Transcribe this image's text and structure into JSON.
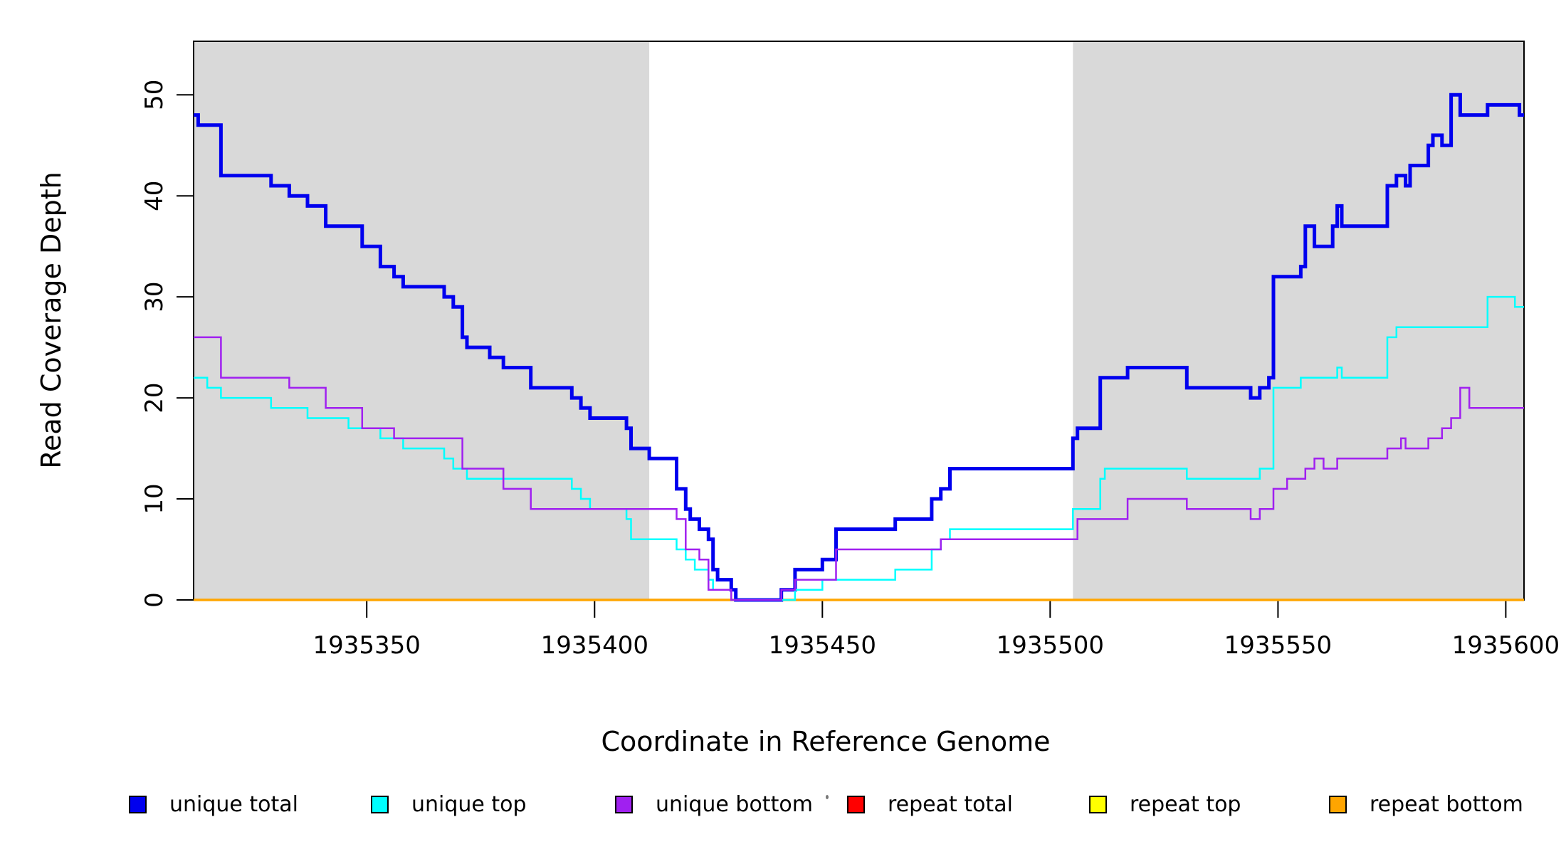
{
  "figure": {
    "background": "#FFFFFF",
    "plot_background_shaded": "#D9D9D9",
    "border_color": "#000000"
  },
  "chart_data": {
    "type": "line",
    "step": true,
    "title": "",
    "xlabel": "Coordinate in Reference Genome",
    "ylabel": "Read Coverage Depth",
    "xlim": [
      1935312,
      1935604
    ],
    "ylim": [
      0,
      55.3
    ],
    "x_ticks": [
      1935350,
      1935400,
      1935450,
      1935500,
      1935550,
      1935600
    ],
    "y_ticks": [
      0,
      10,
      20,
      30,
      40,
      50
    ],
    "grid": false,
    "legend_position": "bottom",
    "shaded_regions": [
      [
        1935312,
        1935412
      ],
      [
        1935505,
        1935604
      ]
    ],
    "series": [
      {
        "name": "repeat total",
        "color": "#FF0000",
        "width": 2.5,
        "points": [
          [
            1935312,
            0
          ]
        ]
      },
      {
        "name": "repeat top",
        "color": "#FFFF00",
        "width": 2.5,
        "points": [
          [
            1935312,
            0
          ]
        ]
      },
      {
        "name": "repeat bottom",
        "color": "#FFA500",
        "width": 3.5,
        "points": [
          [
            1935312,
            0
          ]
        ]
      },
      {
        "name": "unique total",
        "color": "#0000EE",
        "width": 5,
        "points": [
          [
            1935312,
            48
          ],
          [
            1935313,
            47
          ],
          [
            1935318,
            42
          ],
          [
            1935329,
            41
          ],
          [
            1935333,
            40
          ],
          [
            1935337,
            39
          ],
          [
            1935341,
            37
          ],
          [
            1935349,
            35
          ],
          [
            1935353,
            33
          ],
          [
            1935356,
            32
          ],
          [
            1935358,
            31
          ],
          [
            1935367,
            30
          ],
          [
            1935369,
            29
          ],
          [
            1935371,
            26
          ],
          [
            1935372,
            25
          ],
          [
            1935377,
            24
          ],
          [
            1935380,
            23
          ],
          [
            1935386,
            21
          ],
          [
            1935395,
            20
          ],
          [
            1935397,
            19
          ],
          [
            1935399,
            18
          ],
          [
            1935407,
            17
          ],
          [
            1935408,
            15
          ],
          [
            1935412,
            14
          ],
          [
            1935418,
            11
          ],
          [
            1935420,
            9
          ],
          [
            1935421,
            8
          ],
          [
            1935423,
            7
          ],
          [
            1935425,
            6
          ],
          [
            1935426,
            3
          ],
          [
            1935427,
            2
          ],
          [
            1935430,
            1
          ],
          [
            1935431,
            0
          ],
          [
            1935441,
            1
          ],
          [
            1935444,
            3
          ],
          [
            1935450,
            4
          ],
          [
            1935453,
            7
          ],
          [
            1935466,
            8
          ],
          [
            1935474,
            10
          ],
          [
            1935476,
            11
          ],
          [
            1935478,
            13
          ],
          [
            1935505,
            16
          ],
          [
            1935506,
            17
          ],
          [
            1935511,
            22
          ],
          [
            1935517,
            23
          ],
          [
            1935530,
            21
          ],
          [
            1935544,
            20
          ],
          [
            1935546,
            21
          ],
          [
            1935548,
            22
          ],
          [
            1935549,
            32
          ],
          [
            1935555,
            33
          ],
          [
            1935556,
            37
          ],
          [
            1935558,
            35
          ],
          [
            1935562,
            37
          ],
          [
            1935563,
            39
          ],
          [
            1935564,
            37
          ],
          [
            1935574,
            41
          ],
          [
            1935576,
            42
          ],
          [
            1935578,
            41
          ],
          [
            1935579,
            43
          ],
          [
            1935583,
            45
          ],
          [
            1935584,
            46
          ],
          [
            1935586,
            45
          ],
          [
            1935588,
            50
          ],
          [
            1935590,
            48
          ],
          [
            1935596,
            49
          ],
          [
            1935603,
            48
          ]
        ]
      },
      {
        "name": "unique top",
        "color": "#00FFFF",
        "width": 2.5,
        "points": [
          [
            1935312,
            22
          ],
          [
            1935315,
            21
          ],
          [
            1935318,
            20
          ],
          [
            1935329,
            19
          ],
          [
            1935337,
            18
          ],
          [
            1935346,
            17
          ],
          [
            1935353,
            16
          ],
          [
            1935358,
            15
          ],
          [
            1935367,
            14
          ],
          [
            1935369,
            13
          ],
          [
            1935372,
            12
          ],
          [
            1935395,
            11
          ],
          [
            1935397,
            10
          ],
          [
            1935399,
            9
          ],
          [
            1935407,
            8
          ],
          [
            1935408,
            6
          ],
          [
            1935418,
            5
          ],
          [
            1935420,
            4
          ],
          [
            1935422,
            3
          ],
          [
            1935425,
            2
          ],
          [
            1935426,
            1
          ],
          [
            1935430,
            0
          ],
          [
            1935444,
            1
          ],
          [
            1935450,
            2
          ],
          [
            1935466,
            3
          ],
          [
            1935474,
            5
          ],
          [
            1935476,
            6
          ],
          [
            1935478,
            7
          ],
          [
            1935505,
            9
          ],
          [
            1935511,
            12
          ],
          [
            1935512,
            13
          ],
          [
            1935530,
            12
          ],
          [
            1935546,
            13
          ],
          [
            1935549,
            21
          ],
          [
            1935555,
            22
          ],
          [
            1935563,
            23
          ],
          [
            1935564,
            22
          ],
          [
            1935574,
            26
          ],
          [
            1935576,
            27
          ],
          [
            1935596,
            30
          ],
          [
            1935602,
            29
          ]
        ]
      },
      {
        "name": "unique bottom",
        "color": "#A020F0",
        "width": 2.5,
        "points": [
          [
            1935312,
            26
          ],
          [
            1935318,
            22
          ],
          [
            1935333,
            21
          ],
          [
            1935341,
            19
          ],
          [
            1935349,
            17
          ],
          [
            1935356,
            16
          ],
          [
            1935371,
            13
          ],
          [
            1935380,
            11
          ],
          [
            1935386,
            9
          ],
          [
            1935418,
            8
          ],
          [
            1935420,
            5
          ],
          [
            1935423,
            4
          ],
          [
            1935425,
            1
          ],
          [
            1935430,
            0
          ],
          [
            1935441,
            1
          ],
          [
            1935444,
            2
          ],
          [
            1935453,
            5
          ],
          [
            1935476,
            6
          ],
          [
            1935506,
            8
          ],
          [
            1935517,
            10
          ],
          [
            1935530,
            9
          ],
          [
            1935544,
            8
          ],
          [
            1935546,
            9
          ],
          [
            1935549,
            11
          ],
          [
            1935552,
            12
          ],
          [
            1935556,
            13
          ],
          [
            1935558,
            14
          ],
          [
            1935560,
            13
          ],
          [
            1935563,
            14
          ],
          [
            1935574,
            15
          ],
          [
            1935577,
            16
          ],
          [
            1935578,
            15
          ],
          [
            1935583,
            16
          ],
          [
            1935586,
            17
          ],
          [
            1935588,
            18
          ],
          [
            1935590,
            21
          ],
          [
            1935592,
            19
          ]
        ]
      }
    ]
  },
  "legend": {
    "items": [
      {
        "label": "unique total",
        "color": "#0000EE"
      },
      {
        "label": "unique top",
        "color": "#00FFFF"
      },
      {
        "label": "unique bottom",
        "color": "#A020F0"
      },
      {
        "label": "repeat total",
        "color": "#FF0000"
      },
      {
        "label": "repeat top",
        "color": "#FFFF00"
      },
      {
        "label": "repeat bottom",
        "color": "#FFA500"
      }
    ]
  }
}
